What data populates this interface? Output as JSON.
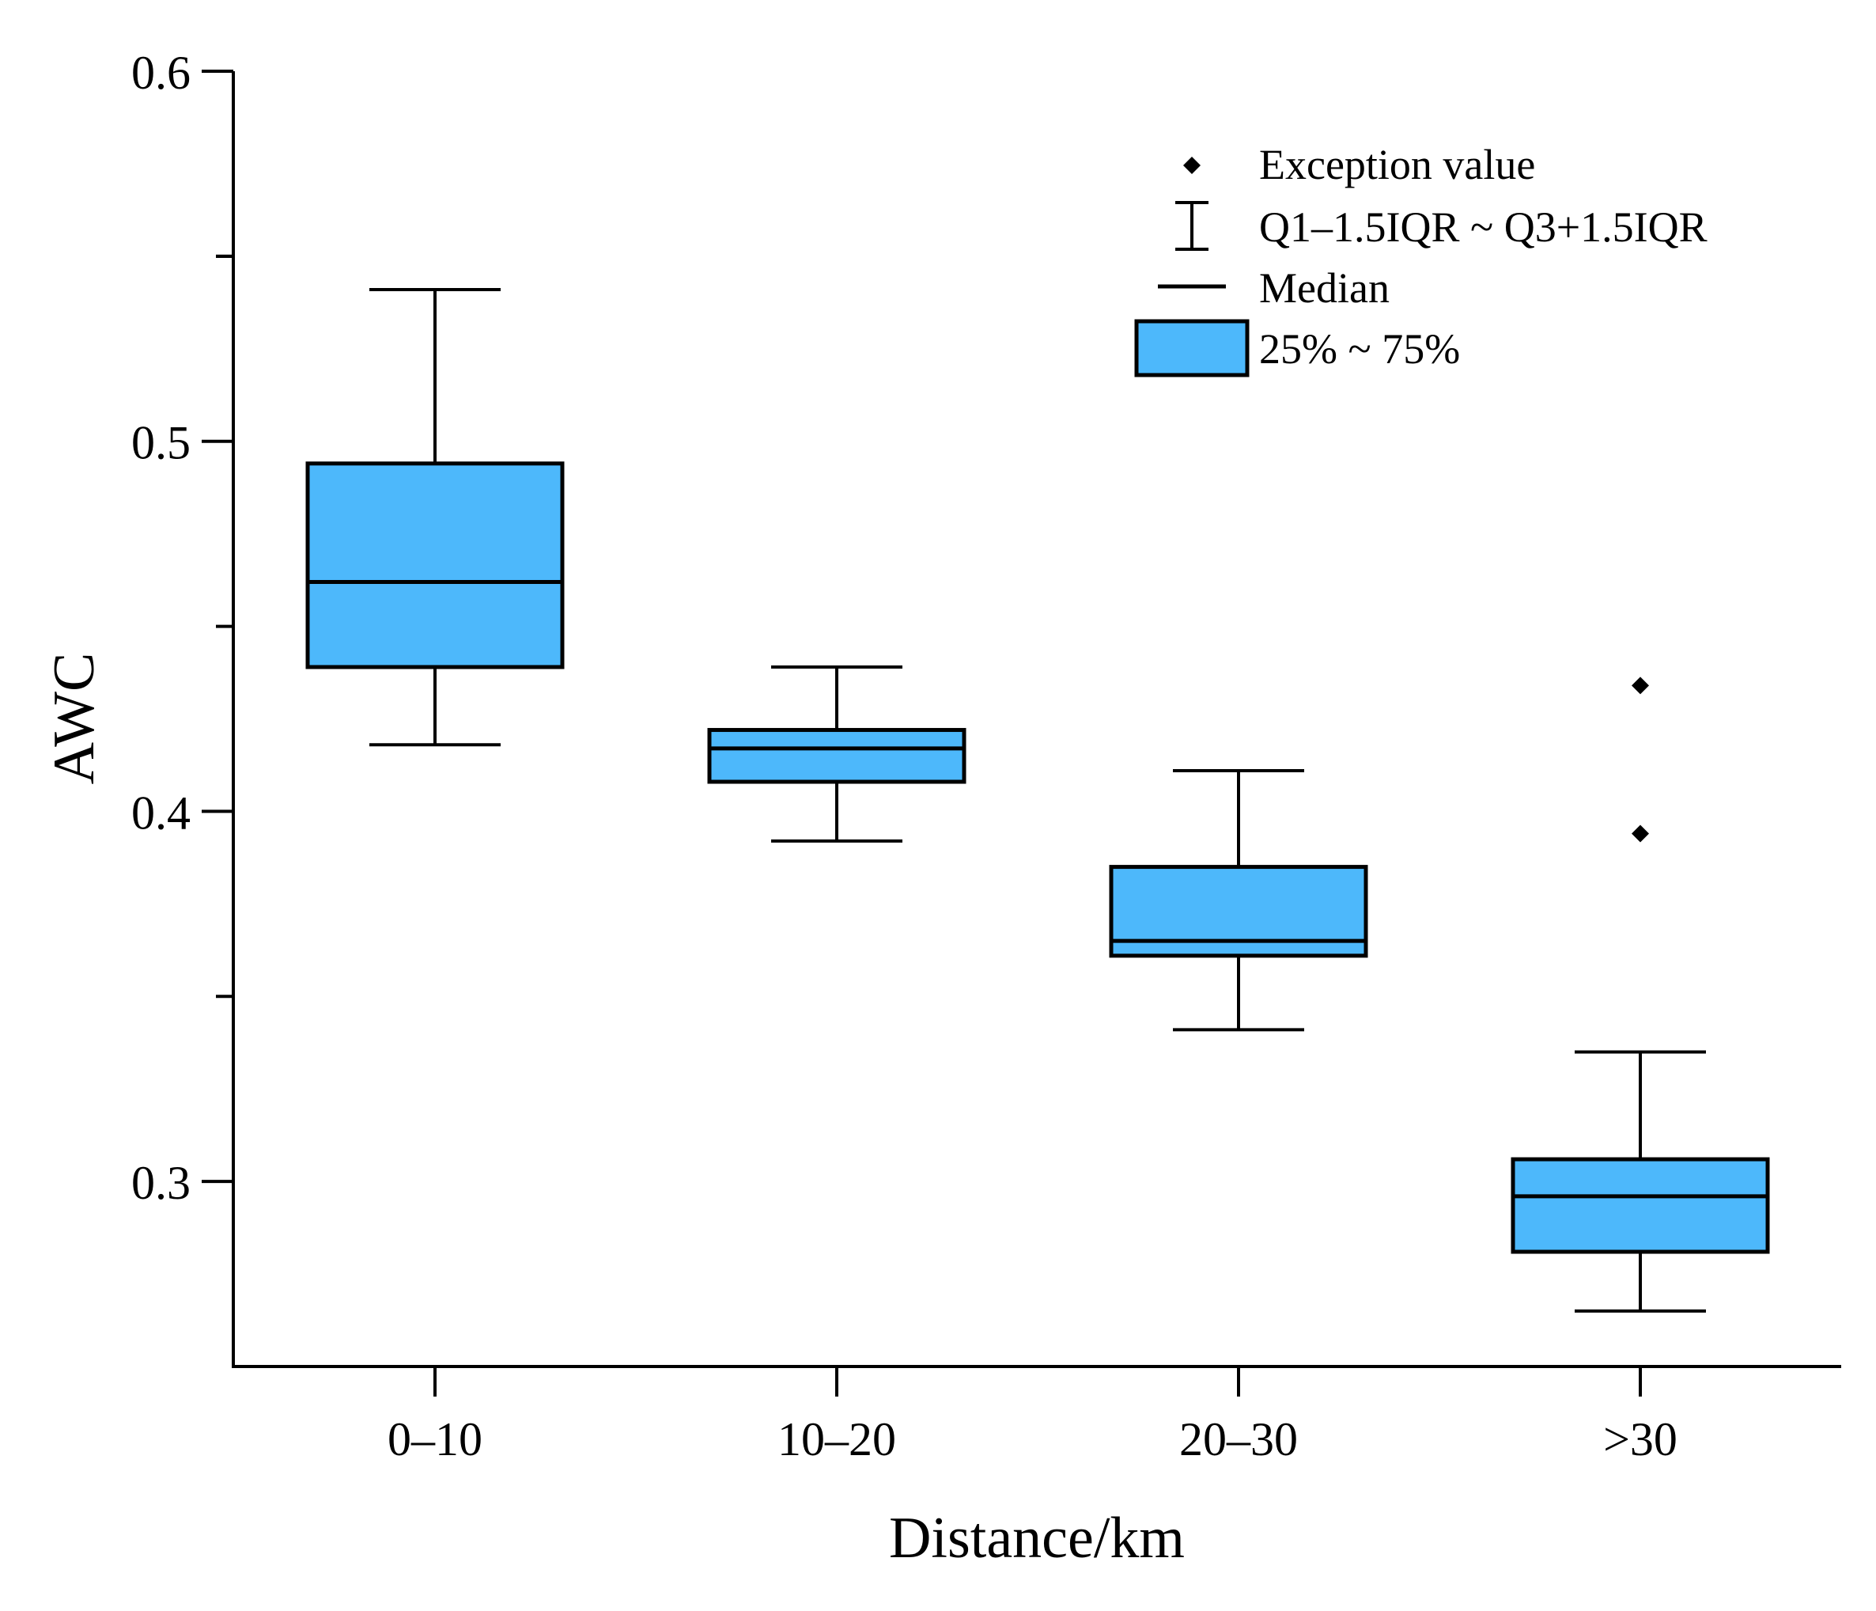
{
  "chart_data": {
    "type": "box",
    "title": "",
    "xlabel": "Distance/km",
    "ylabel": "AWC",
    "ylim": [
      0.25,
      0.6
    ],
    "yticks": [
      "0.3",
      "0.4",
      "0.5",
      "0.6"
    ],
    "categories": [
      "0–10",
      "10–20",
      "20–30",
      ">30"
    ],
    "series": [
      {
        "name": "0–10",
        "whisker_low": 0.418,
        "q1": 0.439,
        "median": 0.462,
        "q3": 0.494,
        "whisker_high": 0.541,
        "outliers": []
      },
      {
        "name": "10–20",
        "whisker_low": 0.392,
        "q1": 0.408,
        "median": 0.417,
        "q3": 0.422,
        "whisker_high": 0.439,
        "outliers": []
      },
      {
        "name": "20–30",
        "whisker_low": 0.341,
        "q1": 0.361,
        "median": 0.365,
        "q3": 0.385,
        "whisker_high": 0.411,
        "outliers": []
      },
      {
        "name": ">30",
        "whisker_low": 0.265,
        "q1": 0.281,
        "median": 0.296,
        "q3": 0.306,
        "whisker_high": 0.335,
        "outliers": [
          0.434,
          0.394
        ]
      }
    ],
    "legend": {
      "position": "top-right",
      "items": [
        {
          "symbol": "diamond",
          "label": "Exception value"
        },
        {
          "symbol": "whisker",
          "label": "Q1–1.5IQR ~ Q3+1.5IQR"
        },
        {
          "symbol": "median-line",
          "label": "Median"
        },
        {
          "symbol": "box",
          "label": "25% ~ 75%"
        }
      ]
    },
    "colors": {
      "box_fill": "#4db8fb",
      "stroke": "#000000"
    }
  }
}
